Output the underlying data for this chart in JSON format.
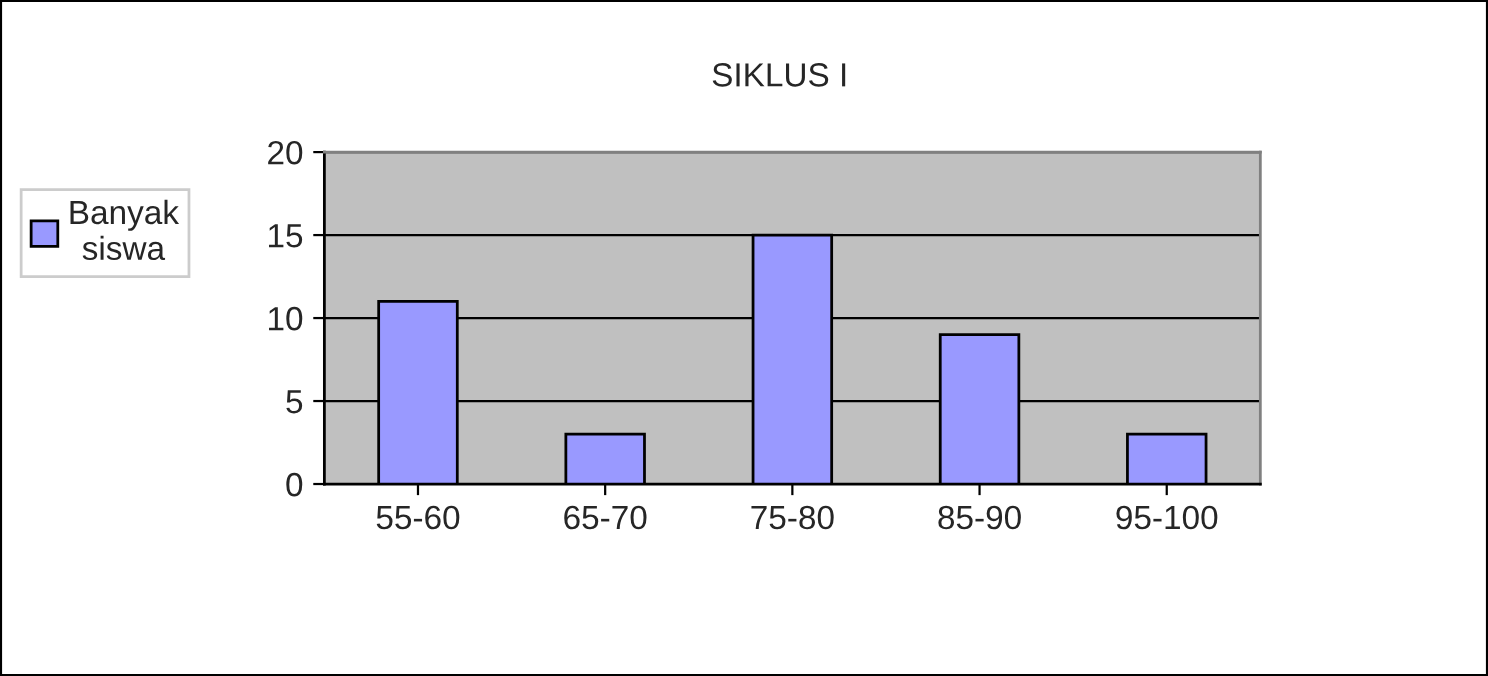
{
  "chart_data": {
    "type": "bar",
    "title": "SIKLUS I",
    "categories": [
      "55-60",
      "65-70",
      "75-80",
      "85-90",
      "95-100"
    ],
    "series": [
      {
        "name": "Banyak siswa",
        "color": "#9999ff",
        "values": [
          11,
          3,
          15,
          9,
          3
        ]
      }
    ],
    "ylim": [
      0,
      20
    ],
    "yticks": [
      0,
      5,
      10,
      15,
      20
    ],
    "grid": "y",
    "legend": "left"
  }
}
